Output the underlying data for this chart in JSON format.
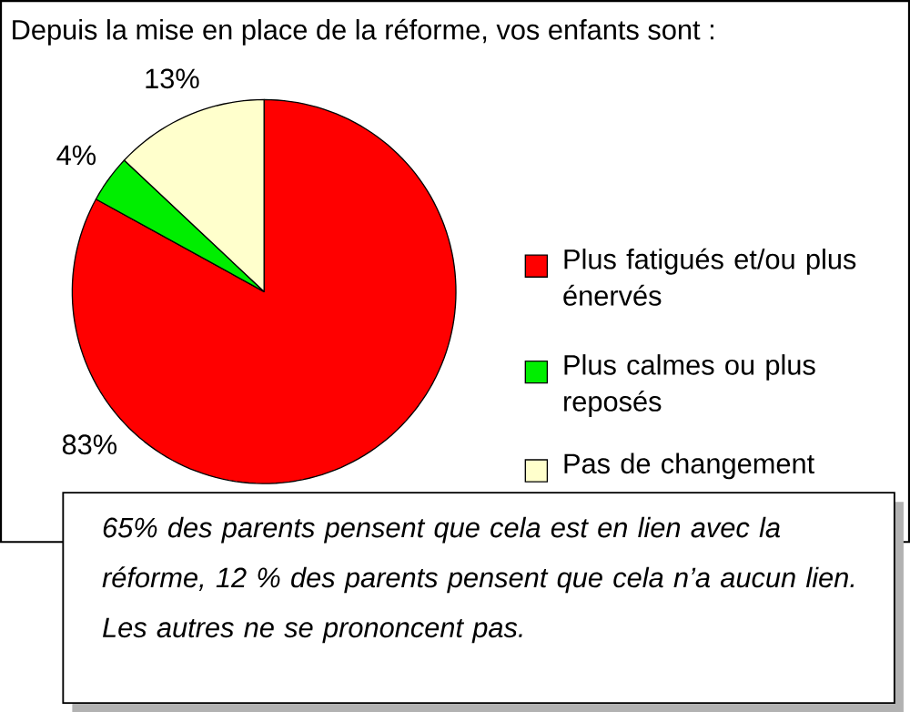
{
  "chart_data": {
    "type": "pie",
    "title": "Depuis la mise en place de la réforme, vos enfants sont :",
    "categories": [
      "Plus fatigués et/ou plus énervés",
      "Plus calmes ou plus reposés",
      "Pas de changement"
    ],
    "values": [
      83,
      4,
      13
    ],
    "colors": [
      "#ff0000",
      "#00ee00",
      "#ffffcc"
    ],
    "value_labels": [
      "83%",
      "4%",
      "13%"
    ],
    "legend": "right",
    "annotations": [
      "65% des parents pensent que cela est en lien avec la réforme, 12 % des parents pensent que cela n’a aucun lien. Les autres ne se prononcent pas."
    ]
  }
}
